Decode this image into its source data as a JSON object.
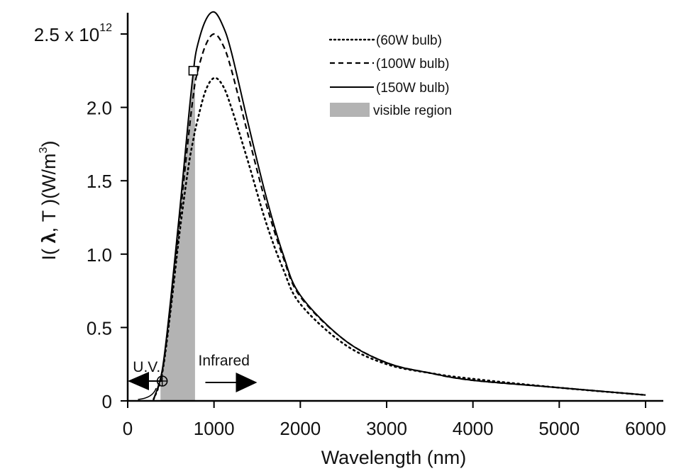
{
  "chart_data": {
    "type": "line",
    "xlabel": "Wavelength (nm)",
    "ylabel": "I( λ, T )(W/m³)",
    "ylabel_parts": {
      "prefix": "I( ",
      "lambda": "λ",
      "mid": ", T )(W/m",
      "sup": "3",
      "suffix": ")"
    },
    "xlim": [
      0,
      6000
    ],
    "ylim": [
      0,
      2.5
    ],
    "x_ticks": [
      {
        "value": 0,
        "label": "0"
      },
      {
        "value": 1000,
        "label": "1000"
      },
      {
        "value": 2000,
        "label": "2000"
      },
      {
        "value": 3000,
        "label": "3000"
      },
      {
        "value": 4000,
        "label": "4000"
      },
      {
        "value": 5000,
        "label": "5000"
      },
      {
        "value": 6000,
        "label": "6000"
      }
    ],
    "y_ticks": [
      {
        "value": 0,
        "label": "0"
      },
      {
        "value": 0.5,
        "label": "0.5"
      },
      {
        "value": 1.0,
        "label": "1.0"
      },
      {
        "value": 1.5,
        "label": "1.5"
      },
      {
        "value": 2.0,
        "label": "2.0"
      },
      {
        "value": 2.5,
        "label": "2.5 x 10",
        "sup": "12"
      }
    ],
    "x": [
      300,
      400,
      500,
      600,
      700,
      760,
      800,
      900,
      1000,
      1100,
      1200,
      1400,
      1600,
      1800,
      2000,
      2500,
      3000,
      3500,
      4000,
      5000,
      6000
    ],
    "series": [
      {
        "name": "(60W bulb)",
        "style": "dotted",
        "values": [
          0.01,
          0.19,
          0.63,
          1.14,
          1.58,
          1.78,
          1.89,
          2.11,
          2.2,
          2.15,
          2.0,
          1.62,
          1.22,
          0.9,
          0.66,
          0.39,
          0.25,
          0.19,
          0.15,
          0.09,
          0.04
        ]
      },
      {
        "name": "(100W bulb)",
        "style": "dashed",
        "values": [
          0.01,
          0.2,
          0.66,
          1.22,
          1.78,
          2.08,
          2.22,
          2.42,
          2.5,
          2.43,
          2.26,
          1.8,
          1.35,
          0.98,
          0.71,
          0.42,
          0.26,
          0.19,
          0.14,
          0.09,
          0.04
        ]
      },
      {
        "name": "(150W bulb)",
        "style": "solid",
        "values": [
          0.01,
          0.21,
          0.7,
          1.28,
          1.9,
          2.24,
          2.4,
          2.59,
          2.65,
          2.56,
          2.38,
          1.88,
          1.4,
          1.0,
          0.72,
          0.42,
          0.26,
          0.19,
          0.14,
          0.09,
          0.04
        ]
      }
    ],
    "legend": {
      "position": "top-right",
      "entries": [
        "(60W bulb)",
        "(100W bulb)",
        "(150W bulb)",
        "visible region"
      ]
    },
    "visible_region": {
      "label": "visible region",
      "x_range": [
        380,
        780
      ],
      "color": "#b3b3b3"
    },
    "annotations": {
      "uv": {
        "label": "U.V.",
        "wavelength": 400
      },
      "infrared": {
        "label": "Infrared",
        "wavelength_start": 900,
        "wavelength_end": 1500
      },
      "visible_peak_marker": {
        "x": 760,
        "y": 2.25
      }
    },
    "grid": false
  }
}
